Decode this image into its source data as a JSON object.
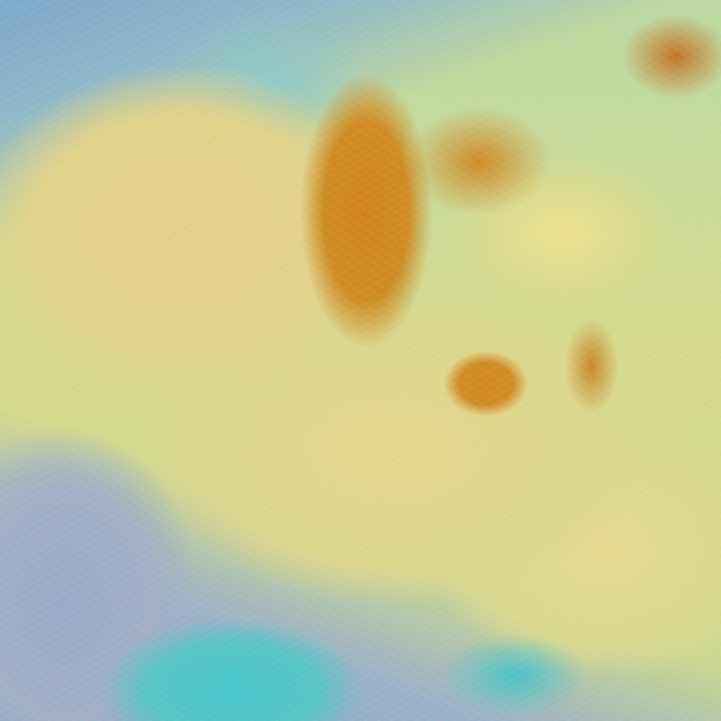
{
  "image": {
    "kind": "false-color satellite cloud imagery",
    "colors": {
      "cloud_yellow": "#e4d38c",
      "dry_orange": "#d2801e",
      "sea_cyan": "#4fc4c8",
      "land_violet": "#9aa9c7",
      "edge_green": "#3cdca0"
    }
  }
}
